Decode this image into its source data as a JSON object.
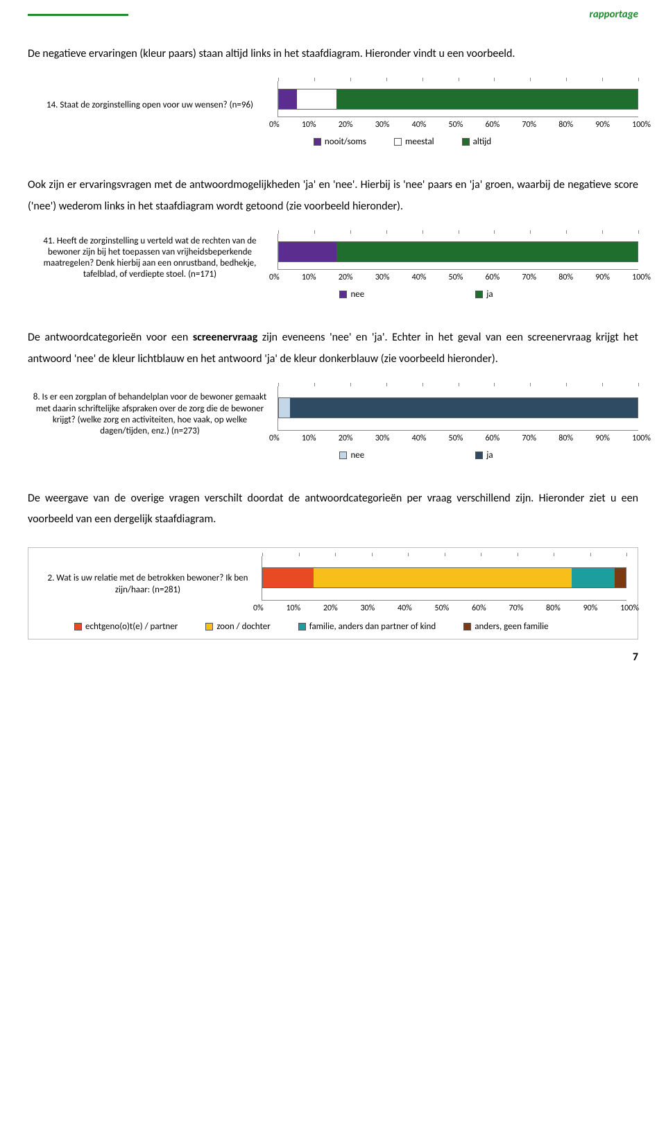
{
  "header": {
    "tag": "rapportage"
  },
  "intro1": "De negatieve ervaringen (kleur paars) staan altijd links in het staafdiagram. Hieronder vindt u een voorbeeld.",
  "chart1": {
    "type": "bar",
    "question": "14. Staat de zorginstelling open voor uw wensen? (n=96)",
    "segments": [
      {
        "value": 5,
        "color": "#5b2d8f"
      },
      {
        "value": 11,
        "color": "#ffffff"
      },
      {
        "value": 84,
        "color": "#1f6e2e"
      }
    ],
    "xticks": [
      "0%",
      "10%",
      "20%",
      "30%",
      "40%",
      "50%",
      "60%",
      "70%",
      "80%",
      "90%",
      "100%"
    ],
    "legend": [
      {
        "label": "nooit/soms",
        "color": "#5b2d8f"
      },
      {
        "label": "meestal",
        "color": "#ffffff"
      },
      {
        "label": "altijd",
        "color": "#1f6e2e"
      }
    ]
  },
  "para2a": "Ook zijn er ervaringsvragen met de antwoordmogelijkheden 'ja' en 'nee'. Hierbij is 'nee' paars en 'ja' groen,",
  "para2b": "waarbij de negatieve score ('nee') wederom links in het staafdiagram wordt getoond (zie voorbeeld hieronder).",
  "chart2": {
    "type": "bar",
    "question": "41. Heeft de zorginstelling u verteld wat de rechten van de bewoner zijn bij het toepassen van vrijheidsbeperkende maatregelen? Denk hierbij aan een onrustband, bedhekje, tafelblad, of verdiepte stoel. (n=171)",
    "segments": [
      {
        "value": 16,
        "color": "#5b2d8f"
      },
      {
        "value": 84,
        "color": "#1f6e2e"
      }
    ],
    "xticks": [
      "0%",
      "10%",
      "20%",
      "30%",
      "40%",
      "50%",
      "60%",
      "70%",
      "80%",
      "90%",
      "100%"
    ],
    "legend": [
      {
        "label": "nee",
        "color": "#5b2d8f"
      },
      {
        "label": "ja",
        "color": "#1f6e2e"
      }
    ]
  },
  "para3a": "De antwoordcategorieën voor een ",
  "para3bold": "screenervraag",
  "para3b": " zijn eveneens 'nee' en 'ja'. Echter in het geval van een",
  "para3c": "screenervraag krijgt het antwoord 'nee' de kleur lichtblauw en het antwoord 'ja' de kleur donkerblauw (zie",
  "para3d": "voorbeeld hieronder).",
  "chart3": {
    "type": "bar",
    "question": "8. Is er een zorgplan of behandelplan voor de bewoner gemaakt met daarin schriftelijke afspraken over de zorg die de bewoner krijgt? (welke zorg en activiteiten, hoe vaak, op welke dagen/tijden, enz.) (n=273)",
    "segments": [
      {
        "value": 3,
        "color": "#c3d7e8"
      },
      {
        "value": 97,
        "color": "#2f4a63"
      }
    ],
    "xticks": [
      "0%",
      "10%",
      "20%",
      "30%",
      "40%",
      "50%",
      "60%",
      "70%",
      "80%",
      "90%",
      "100%"
    ],
    "legend": [
      {
        "label": "nee",
        "color": "#c3d7e8"
      },
      {
        "label": "ja",
        "color": "#2f4a63"
      }
    ]
  },
  "para4a": "De weergave van de overige vragen verschilt doordat de antwoordcategorieën per vraag verschillend zijn.",
  "para4b": "Hieronder ziet u een voorbeeld van een dergelijk staafdiagram.",
  "chart4": {
    "type": "bar",
    "question": "2. Wat is uw relatie met de betrokken bewoner? Ik ben zijn/haar: (n=281)",
    "segments": [
      {
        "value": 14,
        "color": "#e84b23"
      },
      {
        "value": 71,
        "color": "#f8be1a"
      },
      {
        "value": 12,
        "color": "#1d9e9e"
      },
      {
        "value": 3,
        "color": "#7a3b14"
      }
    ],
    "xticks": [
      "0%",
      "10%",
      "20%",
      "30%",
      "40%",
      "50%",
      "60%",
      "70%",
      "80%",
      "90%",
      "100%"
    ],
    "legend": [
      {
        "label": "echtgeno(o)t(e) / partner",
        "color": "#e84b23"
      },
      {
        "label": "zoon / dochter",
        "color": "#f8be1a"
      },
      {
        "label": "familie, anders dan partner of kind",
        "color": "#1d9e9e"
      },
      {
        "label": "anders, geen familie",
        "color": "#7a3b14"
      }
    ]
  },
  "pageNumber": "7"
}
